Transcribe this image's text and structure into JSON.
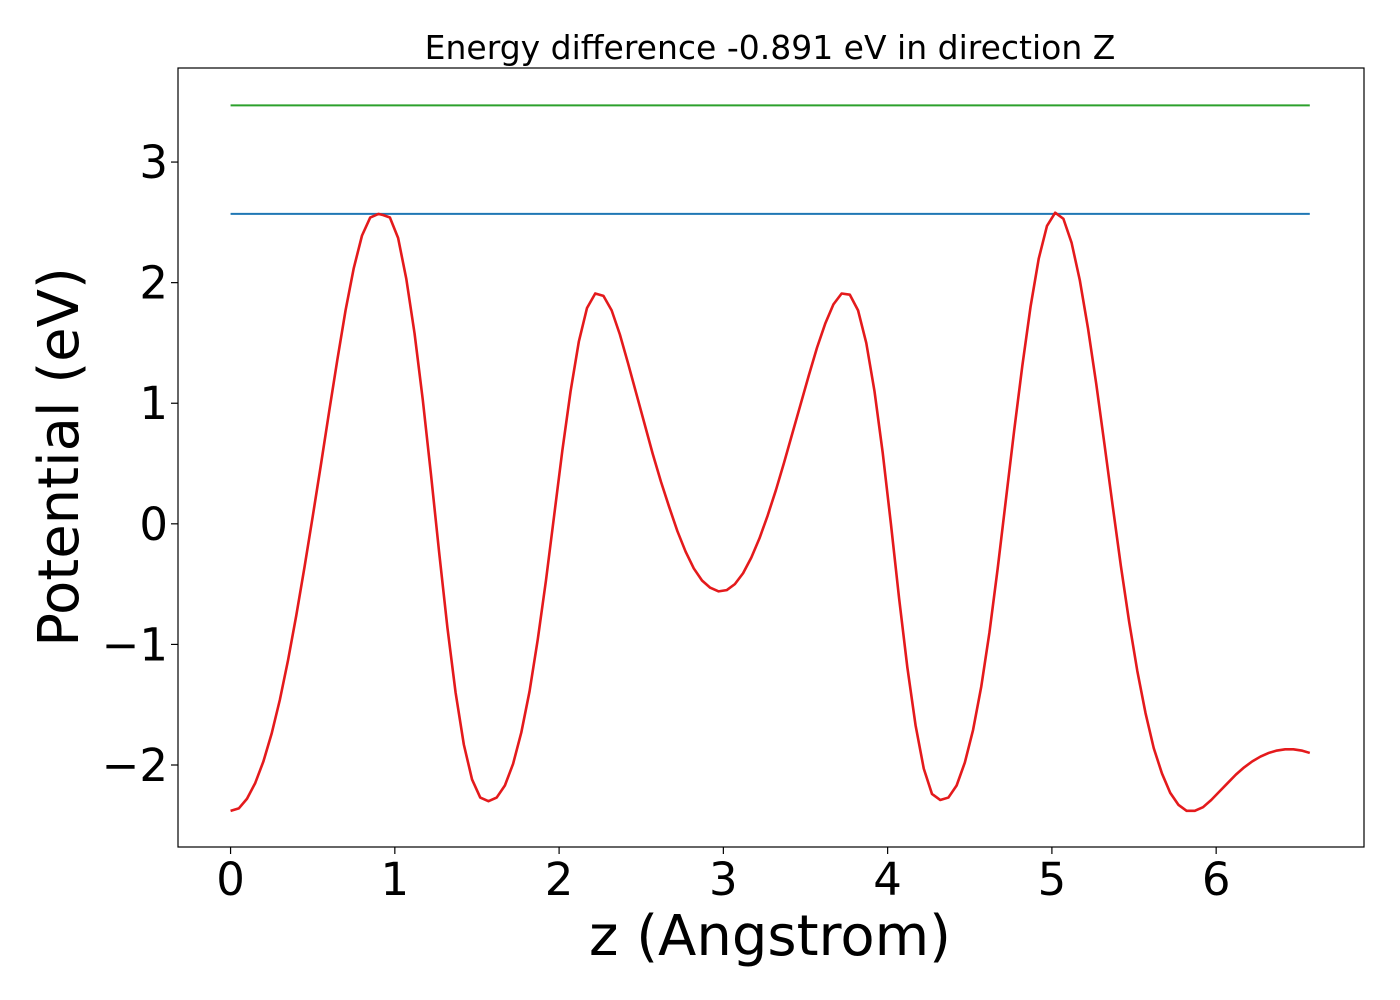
{
  "chart_data": {
    "type": "line",
    "title": "Energy difference -0.891 eV in direction Z",
    "xlabel": "z (Angstrom)",
    "ylabel": "Potential (eV)",
    "xlim": [
      -0.32,
      6.9
    ],
    "ylim": [
      -2.68,
      3.78
    ],
    "xticks": [
      0,
      1,
      2,
      3,
      4,
      5,
      6
    ],
    "xtick_labels": [
      "0",
      "1",
      "2",
      "3",
      "4",
      "5",
      "6"
    ],
    "yticks": [
      -2,
      -1,
      0,
      1,
      2,
      3
    ],
    "ytick_labels": [
      "−2",
      "−1",
      "0",
      "1",
      "2",
      "3"
    ],
    "grid": false,
    "series": [
      {
        "color": "#2ca02c",
        "x": [
          0,
          6.57
        ],
        "y": [
          3.47,
          3.47
        ]
      },
      {
        "color": "#1f77b4",
        "x": [
          0,
          6.57
        ],
        "y": [
          2.57,
          2.57
        ]
      },
      {
        "color": "#e41a1c",
        "x": [
          0,
          0.05,
          0.1,
          0.15,
          0.2,
          0.25,
          0.3,
          0.35,
          0.4,
          0.45,
          0.5,
          0.55,
          0.6,
          0.65,
          0.7,
          0.75,
          0.8,
          0.85,
          0.9,
          0.93,
          0.97,
          1.02,
          1.07,
          1.12,
          1.17,
          1.22,
          1.27,
          1.32,
          1.37,
          1.42,
          1.47,
          1.52,
          1.57,
          1.62,
          1.67,
          1.72,
          1.77,
          1.82,
          1.87,
          1.92,
          1.97,
          2.02,
          2.07,
          2.12,
          2.17,
          2.22,
          2.27,
          2.32,
          2.37,
          2.42,
          2.47,
          2.52,
          2.57,
          2.62,
          2.67,
          2.72,
          2.77,
          2.82,
          2.87,
          2.92,
          2.97,
          3.02,
          3.07,
          3.12,
          3.17,
          3.22,
          3.27,
          3.32,
          3.37,
          3.42,
          3.47,
          3.52,
          3.57,
          3.62,
          3.67,
          3.72,
          3.77,
          3.82,
          3.87,
          3.92,
          3.97,
          4.02,
          4.07,
          4.12,
          4.17,
          4.22,
          4.27,
          4.32,
          4.37,
          4.42,
          4.47,
          4.52,
          4.57,
          4.62,
          4.67,
          4.72,
          4.77,
          4.82,
          4.87,
          4.92,
          4.97,
          5.02,
          5.07,
          5.12,
          5.17,
          5.22,
          5.27,
          5.32,
          5.37,
          5.42,
          5.47,
          5.52,
          5.57,
          5.62,
          5.67,
          5.72,
          5.77,
          5.82,
          5.87,
          5.92,
          5.97,
          6.02,
          6.07,
          6.12,
          6.17,
          6.22,
          6.27,
          6.32,
          6.37,
          6.42,
          6.47,
          6.52,
          6.57
        ],
        "y": [
          -2.38,
          -2.36,
          -2.28,
          -2.15,
          -1.97,
          -1.74,
          -1.46,
          -1.13,
          -0.76,
          -0.36,
          0.06,
          0.49,
          0.93,
          1.36,
          1.77,
          2.12,
          2.39,
          2.54,
          2.57,
          2.56,
          2.54,
          2.37,
          2.03,
          1.58,
          1.03,
          0.41,
          -0.24,
          -0.86,
          -1.4,
          -1.83,
          -2.12,
          -2.27,
          -2.3,
          -2.27,
          -2.17,
          -1.99,
          -1.73,
          -1.39,
          -0.96,
          -0.47,
          0.07,
          0.61,
          1.1,
          1.51,
          1.79,
          1.91,
          1.89,
          1.77,
          1.57,
          1.33,
          1.08,
          0.83,
          0.58,
          0.35,
          0.14,
          -0.06,
          -0.23,
          -0.37,
          -0.47,
          -0.53,
          -0.56,
          -0.55,
          -0.5,
          -0.41,
          -0.28,
          -0.12,
          0.07,
          0.28,
          0.51,
          0.75,
          0.99,
          1.23,
          1.46,
          1.66,
          1.82,
          1.91,
          1.9,
          1.77,
          1.5,
          1.1,
          0.59,
          0.0,
          -0.62,
          -1.19,
          -1.67,
          -2.03,
          -2.24,
          -2.29,
          -2.27,
          -2.17,
          -1.98,
          -1.71,
          -1.35,
          -0.9,
          -0.37,
          0.2,
          0.77,
          1.31,
          1.8,
          2.2,
          2.47,
          2.58,
          2.53,
          2.33,
          2.02,
          1.62,
          1.16,
          0.66,
          0.15,
          -0.35,
          -0.81,
          -1.22,
          -1.57,
          -1.86,
          -2.07,
          -2.23,
          -2.33,
          -2.38,
          -2.38,
          -2.35,
          -2.29,
          -2.22,
          -2.15,
          -2.08,
          -2.02,
          -1.97,
          -1.93,
          -1.9,
          -1.88,
          -1.87,
          -1.87,
          -1.88,
          -1.9
        ]
      }
    ]
  }
}
